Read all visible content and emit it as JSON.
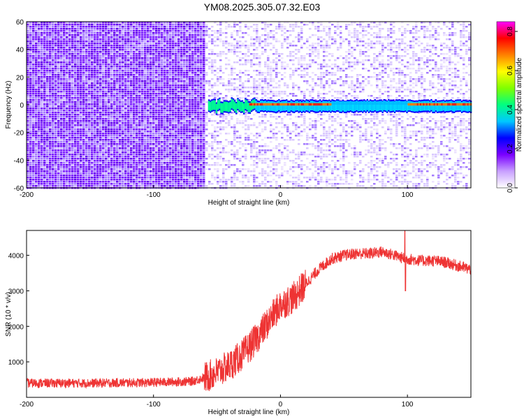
{
  "title": "YM08.2025.305.07.32.E03",
  "chart_data": [
    {
      "type": "heatmap",
      "xlabel": "Height of straight line (km)",
      "ylabel": "Frequency (Hz)",
      "xlim": [
        -200,
        150
      ],
      "ylim": [
        -60,
        60
      ],
      "xticks": [
        -200,
        -100,
        0,
        100
      ],
      "yticks": [
        -60,
        -40,
        -20,
        0,
        20,
        40,
        60
      ],
      "noise_boundary_km": -60,
      "signal_band_hz": [
        -5,
        3
      ],
      "colorbar": {
        "label": "Normalized spectral amplitude",
        "range": [
          0.0,
          0.85
        ],
        "ticks": [
          0.0,
          0.2,
          0.4,
          0.6,
          0.8
        ],
        "stops": [
          "#ffffff",
          "#c8a0ff",
          "#7a00ff",
          "#0000ff",
          "#00c8ff",
          "#00ff80",
          "#80ff00",
          "#ffff00",
          "#ff8000",
          "#ff0000",
          "#ff00ff"
        ]
      }
    },
    {
      "type": "line",
      "xlabel": "Height of straight line (km)",
      "ylabel": "SNR (10 * v/v)",
      "xlim": [
        -200,
        150
      ],
      "ylim": [
        0,
        4700
      ],
      "xticks": [
        -200,
        -100,
        0,
        100
      ],
      "yticks": [
        1000,
        2000,
        3000,
        4000
      ],
      "color": "#ee3333",
      "x": [
        -200,
        -150,
        -100,
        -70,
        -60,
        -50,
        -40,
        -30,
        -20,
        -10,
        0,
        10,
        20,
        30,
        40,
        50,
        60,
        70,
        80,
        90,
        98,
        100,
        110,
        120,
        130,
        140,
        150
      ],
      "y": [
        400,
        400,
        420,
        450,
        550,
        700,
        900,
        1200,
        1600,
        2100,
        2600,
        2800,
        3200,
        3600,
        3900,
        4000,
        4050,
        4050,
        4100,
        4000,
        3900,
        3900,
        3850,
        3850,
        3800,
        3700,
        3600
      ]
    }
  ]
}
